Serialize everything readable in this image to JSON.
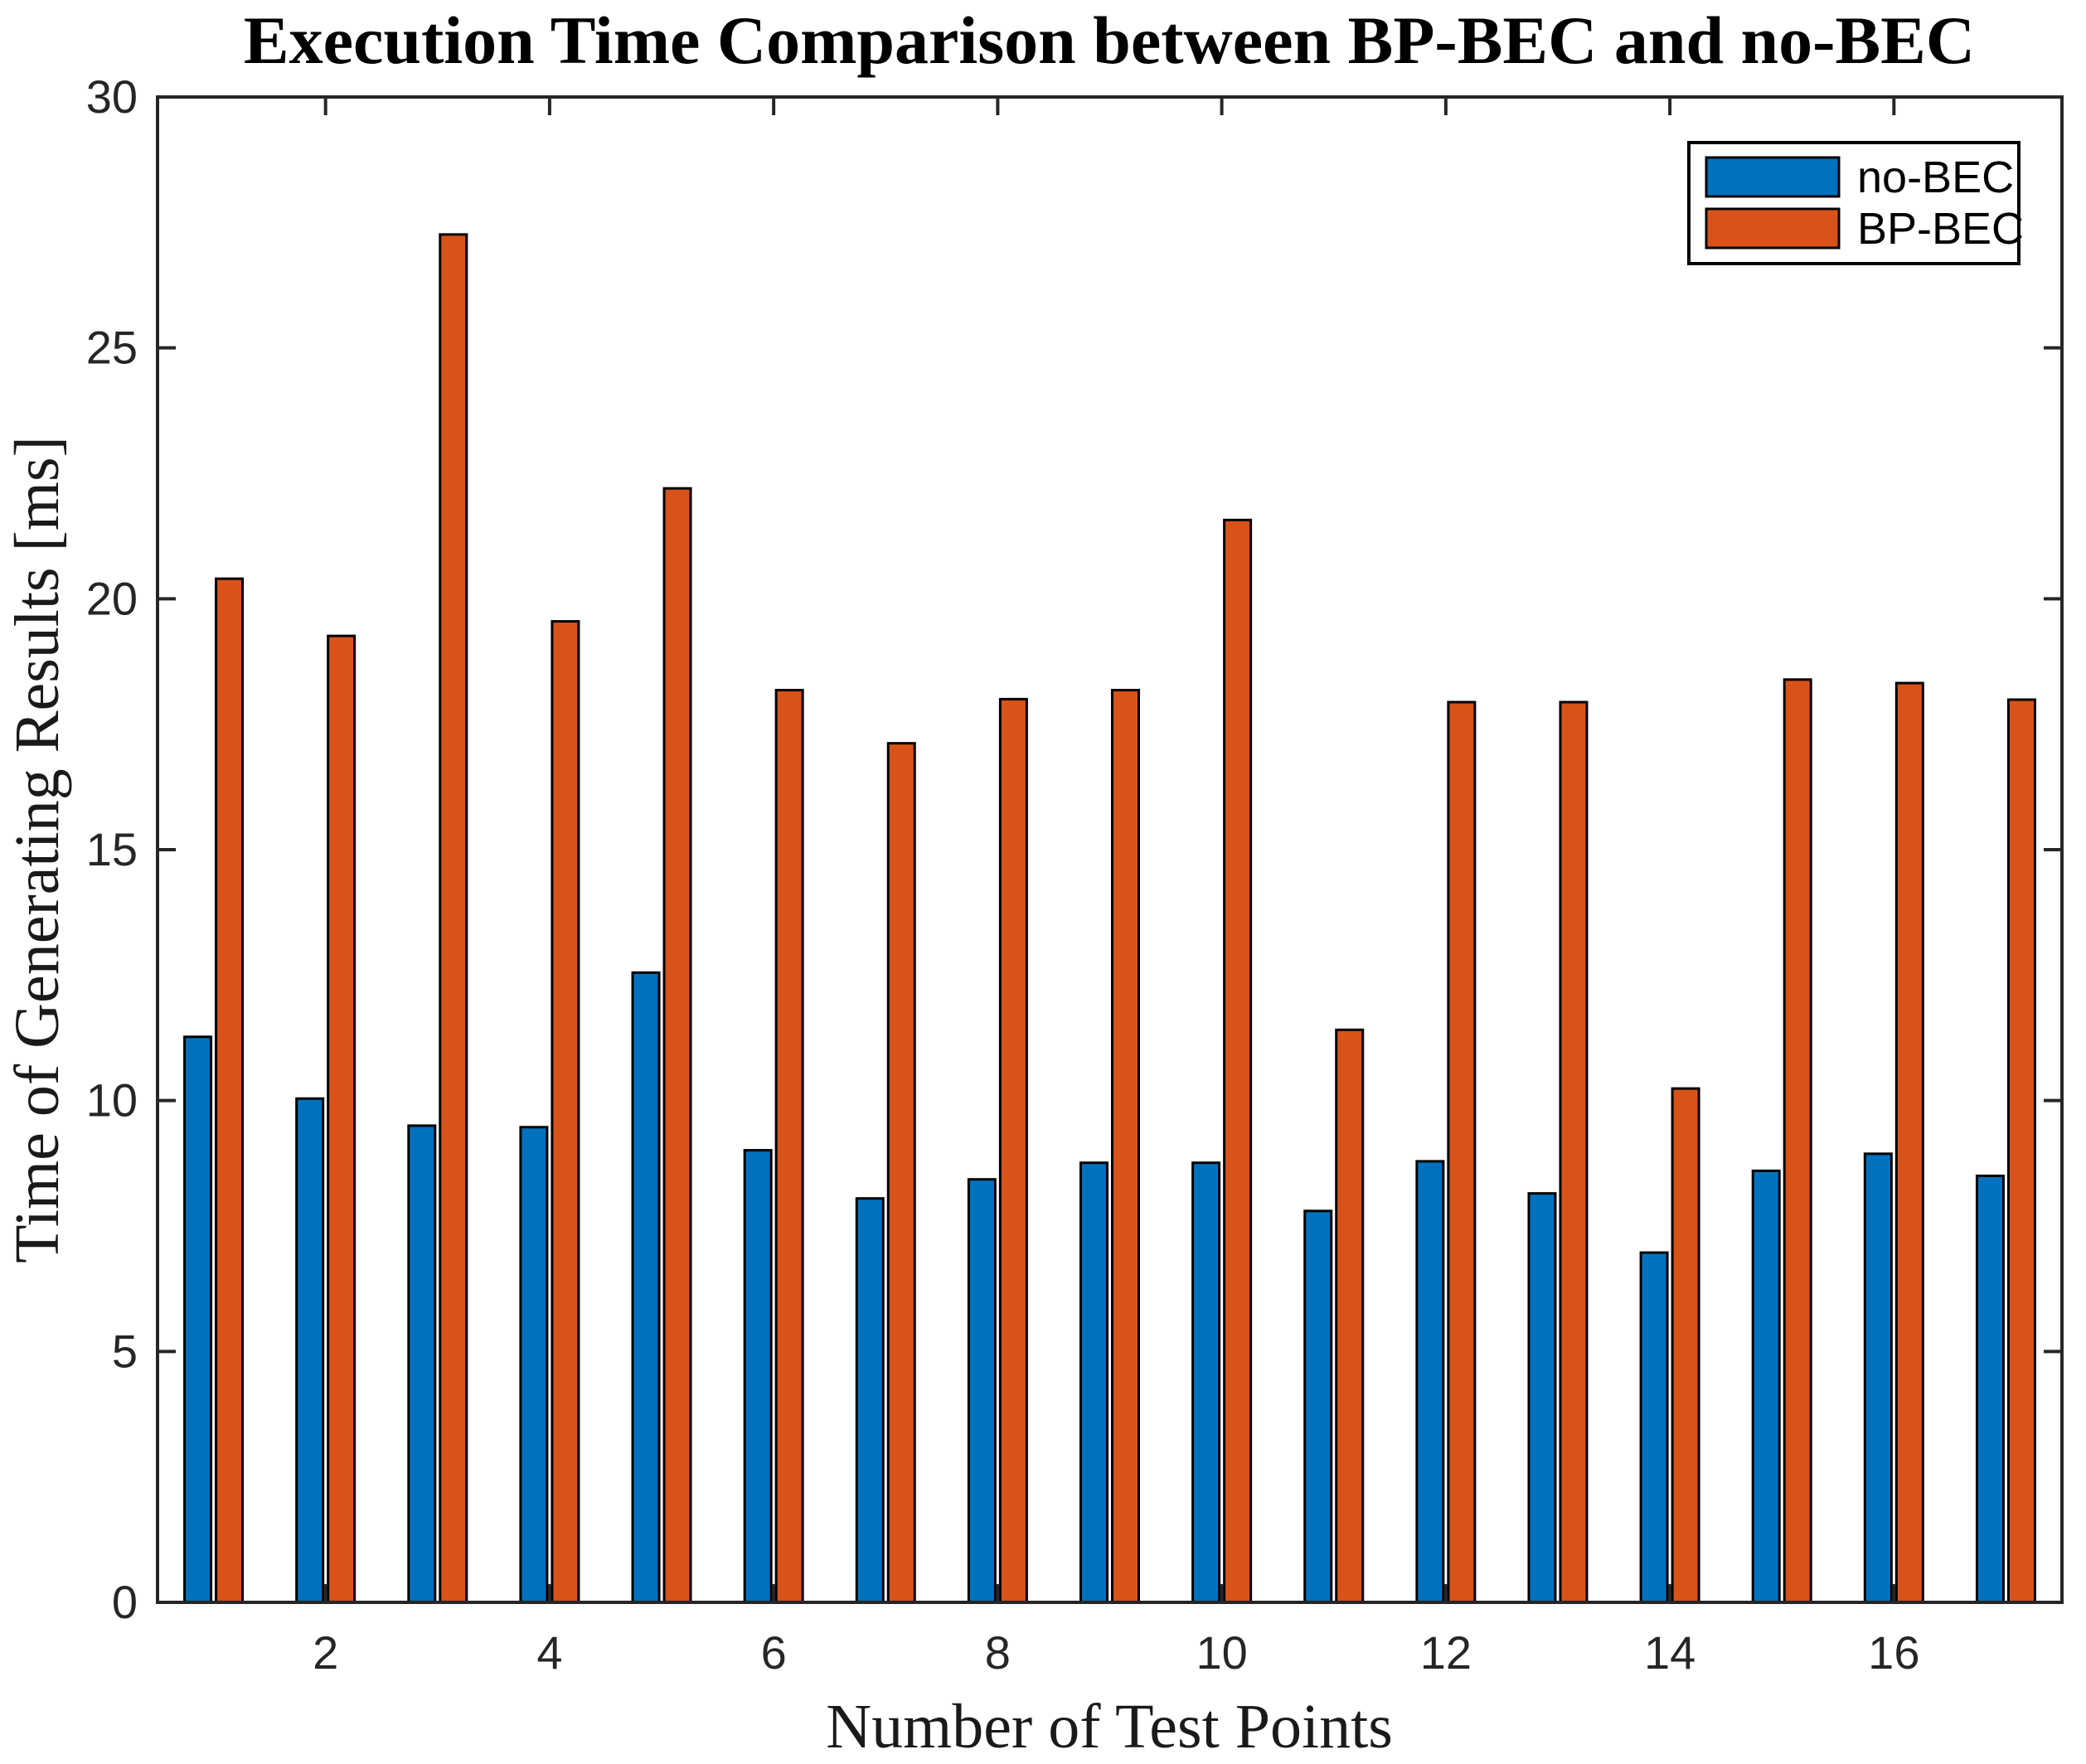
{
  "chart_data": {
    "type": "bar",
    "title": "Execution Time Comparison between BP-BEC and no-BEC",
    "xlabel": "Number of Test Points",
    "ylabel": "Time of Generating Results [ms]",
    "categories": [
      1,
      2,
      3,
      4,
      5,
      6,
      7,
      8,
      9,
      10,
      11,
      12,
      13,
      14,
      15,
      16,
      17
    ],
    "series": [
      {
        "name": "no-BEC",
        "color": "#0072BD",
        "values": [
          11.27,
          10.04,
          9.5,
          9.47,
          12.55,
          9.01,
          8.05,
          8.43,
          8.76,
          8.76,
          7.8,
          8.79,
          8.15,
          6.97,
          8.6,
          8.94,
          8.5
        ]
      },
      {
        "name": "BP-BEC",
        "color": "#D95319",
        "values": [
          20.4,
          19.26,
          27.26,
          19.55,
          22.2,
          18.18,
          17.12,
          18.0,
          18.18,
          21.57,
          11.41,
          17.94,
          17.94,
          10.24,
          18.39,
          18.32,
          17.99
        ]
      }
    ],
    "ylim": [
      0,
      30
    ],
    "xlim": [
      0.5,
      17.5
    ],
    "y_ticks": [
      0,
      5,
      10,
      15,
      20,
      25,
      30
    ],
    "x_ticks": [
      2,
      4,
      6,
      8,
      10,
      12,
      14,
      16
    ],
    "grid": "off",
    "legend_position": "top-right",
    "bar_edge_color": "#000000",
    "axis_color": "#262626",
    "background": "#FFFFFF"
  }
}
